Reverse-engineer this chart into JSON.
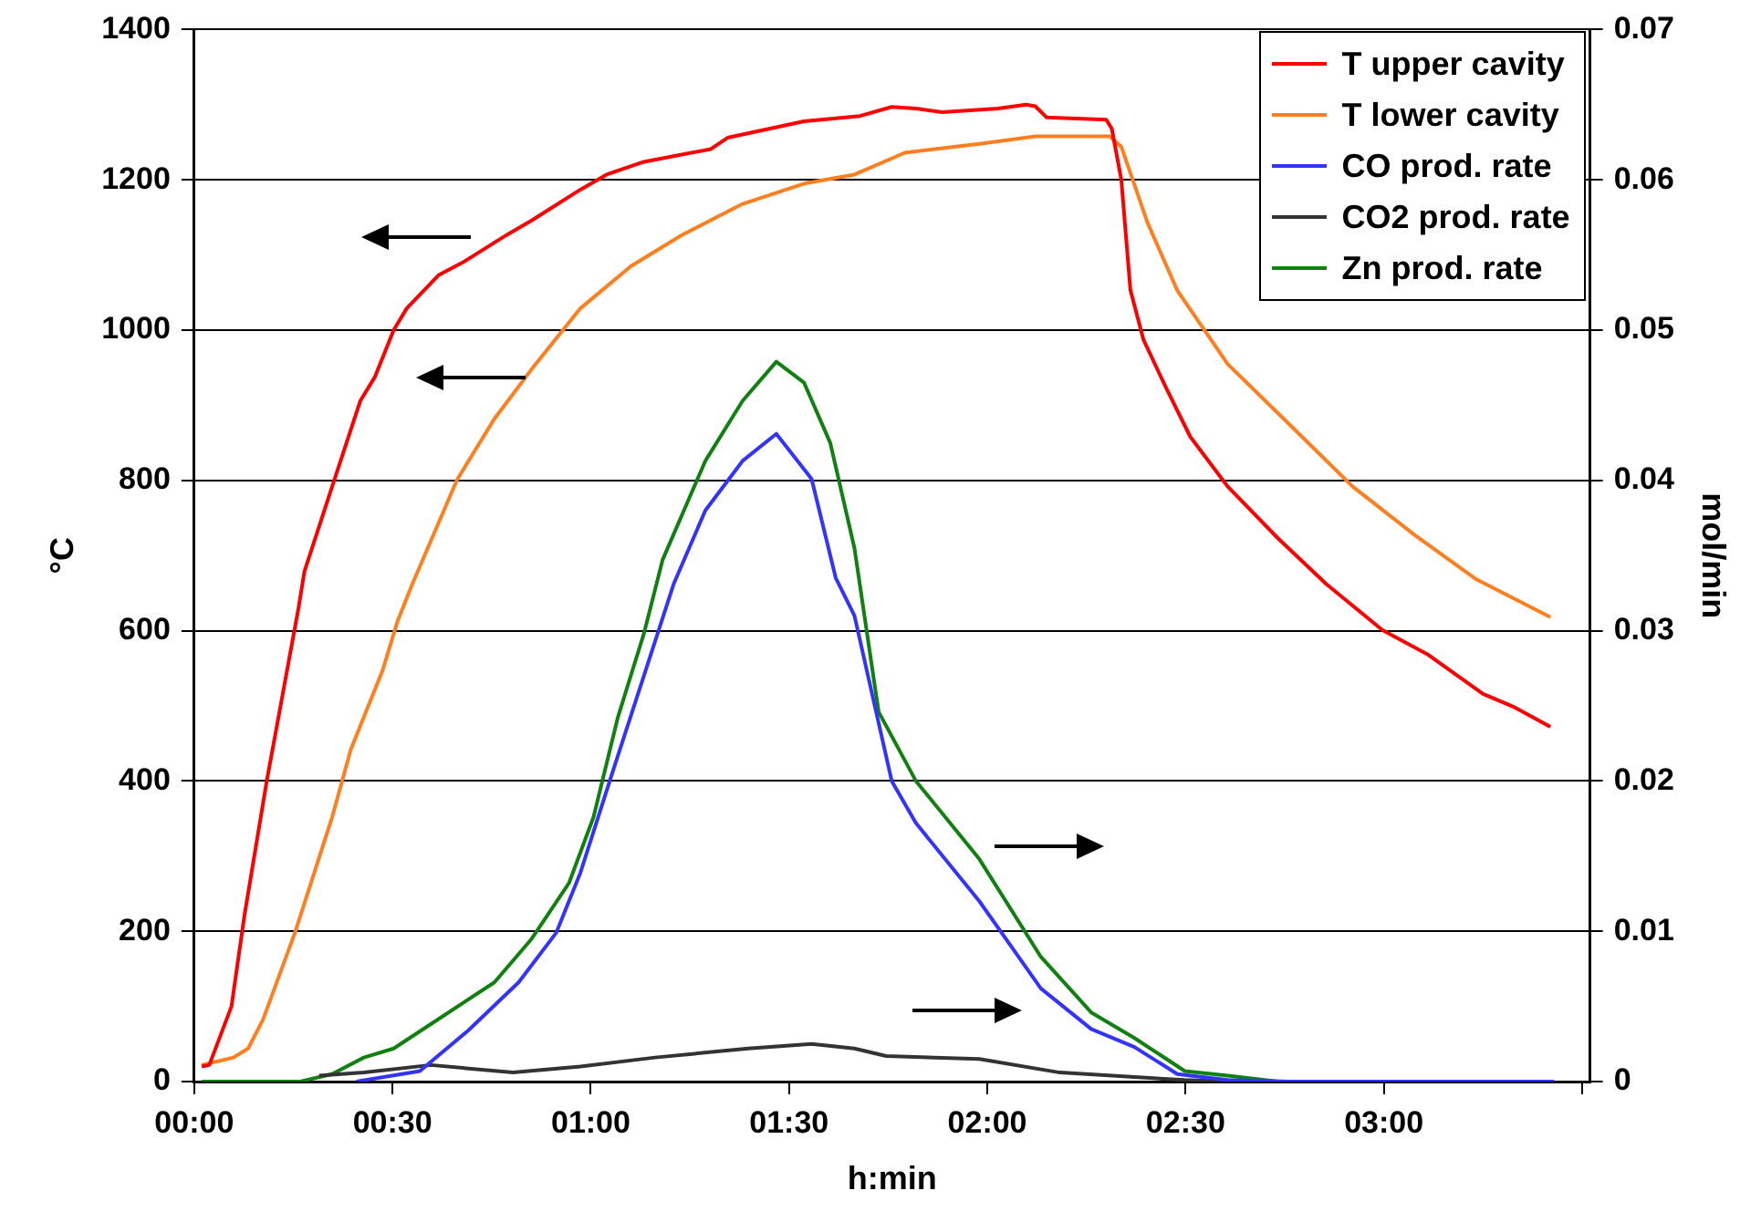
{
  "chart_data": {
    "type": "line",
    "xlabel": "h:min",
    "ylabel": "°C",
    "y2label": "mol/min",
    "xlim": [
      0,
      3.52
    ],
    "xticks": [
      {
        "value": 0,
        "label": "00:00"
      },
      {
        "value": 0.5,
        "label": "00:30"
      },
      {
        "value": 1,
        "label": "01:00"
      },
      {
        "value": 1.5,
        "label": "01:30"
      },
      {
        "value": 2,
        "label": "02:00"
      },
      {
        "value": 2.5,
        "label": "02:30"
      },
      {
        "value": 3,
        "label": "03:00"
      },
      {
        "value": 3.5,
        "label": null
      }
    ],
    "ylim": [
      0,
      1400
    ],
    "yticks": [
      0,
      200,
      400,
      600,
      800,
      1000,
      1200,
      1400
    ],
    "y2lim": [
      0,
      0.07
    ],
    "y2ticks": [
      0,
      0.01,
      0.02,
      0.03,
      0.04,
      0.05,
      0.06,
      0.07
    ],
    "grid": "y",
    "legend": "top right",
    "series": [
      {
        "name": "T upper cavity",
        "color": "#ff0000",
        "x": [
          0.019,
          0.038,
          0.094,
          0.127,
          0.183,
          0.263,
          0.278,
          0.348,
          0.419,
          0.456,
          0.503,
          0.536,
          0.616,
          0.677,
          0.786,
          0.851,
          0.974,
          1.04,
          1.134,
          1.303,
          1.345,
          1.538,
          1.679,
          1.759,
          1.82,
          1.886,
          2.027,
          2.098,
          2.121,
          2.15,
          2.3,
          2.314,
          2.338,
          2.361,
          2.394,
          2.451,
          2.512,
          2.606,
          2.733,
          2.855,
          2.996,
          3.109,
          3.25,
          3.326,
          3.42
        ],
        "values": [
          20,
          22,
          100,
          222,
          400,
          630,
          679,
          792,
          906,
          938,
          1000,
          1029,
          1073,
          1090,
          1126,
          1146,
          1187,
          1207,
          1224,
          1241,
          1256,
          1278,
          1285,
          1297,
          1295,
          1290,
          1295,
          1300,
          1298,
          1283,
          1280,
          1268,
          1200,
          1053,
          987,
          923,
          858,
          792,
          723,
          662,
          601,
          569,
          516,
          499,
          472
        ]
      },
      {
        "name": "T lower cavity",
        "color": "#ff7f1f",
        "x": [
          0.019,
          0.099,
          0.136,
          0.174,
          0.254,
          0.348,
          0.395,
          0.475,
          0.513,
          0.55,
          0.663,
          0.757,
          0.851,
          0.974,
          1.101,
          1.228,
          1.383,
          1.538,
          1.665,
          1.792,
          1.98,
          2.121,
          2.309,
          2.338,
          2.404,
          2.479,
          2.606,
          2.761,
          2.921,
          3.076,
          3.231,
          3.42
        ],
        "values": [
          22,
          32,
          44,
          83,
          198,
          352,
          442,
          547,
          613,
          662,
          801,
          882,
          948,
          1029,
          1085,
          1126,
          1168,
          1195,
          1207,
          1236,
          1248,
          1258,
          1258,
          1244,
          1143,
          1053,
          955,
          875,
          792,
          728,
          669,
          618
        ]
      },
      {
        "name": "CO prod. rate",
        "color": "#3333ff",
        "axis": "y2",
        "x": [
          0.409,
          0.569,
          0.691,
          0.818,
          0.913,
          0.974,
          1.054,
          1.134,
          1.209,
          1.289,
          1.383,
          1.468,
          1.557,
          1.618,
          1.665,
          1.759,
          1.82,
          1.98,
          2.135,
          2.262,
          2.371,
          2.479,
          2.606,
          2.761,
          3.429
        ],
        "values": [
          0,
          0.0007,
          0.0034,
          0.0066,
          0.0099,
          0.0139,
          0.0205,
          0.027,
          0.0331,
          0.038,
          0.0413,
          0.0431,
          0.0401,
          0.0335,
          0.031,
          0.02,
          0.0172,
          0.012,
          0.0062,
          0.0035,
          0.0023,
          0.0005,
          0.0001,
          0,
          0
        ]
      },
      {
        "name": "CO2 prod. rate",
        "color": "#333333",
        "axis": "y2",
        "x": [
          0.315,
          0.428,
          0.597,
          0.804,
          0.974,
          1.162,
          1.397,
          1.557,
          1.665,
          1.745,
          1.98,
          2.183,
          2.498,
          2.606,
          3.429
        ],
        "values": [
          0.0004,
          0.0006,
          0.0011,
          0.0006,
          0.001,
          0.0016,
          0.0022,
          0.0025,
          0.0022,
          0.0017,
          0.0015,
          0.0006,
          0.0001,
          0,
          0
        ]
      },
      {
        "name": "Zn prod. rate",
        "color": "#108010",
        "axis": "y2",
        "x": [
          0.019,
          0.268,
          0.348,
          0.428,
          0.503,
          0.63,
          0.757,
          0.851,
          0.945,
          1.007,
          1.068,
          1.134,
          1.181,
          1.289,
          1.383,
          1.468,
          1.538,
          1.604,
          1.665,
          1.726,
          1.82,
          1.98,
          2.135,
          2.262,
          2.371,
          2.498,
          2.606,
          2.733,
          3.429
        ],
        "values": [
          0,
          0,
          0.0005,
          0.0016,
          0.0022,
          0.0044,
          0.0066,
          0.0095,
          0.0132,
          0.0176,
          0.0242,
          0.0298,
          0.0347,
          0.0413,
          0.0453,
          0.0479,
          0.0465,
          0.0425,
          0.0355,
          0.0246,
          0.02,
          0.0148,
          0.0083,
          0.0046,
          0.0029,
          0.0007,
          0.0004,
          0,
          0
        ]
      }
    ]
  }
}
